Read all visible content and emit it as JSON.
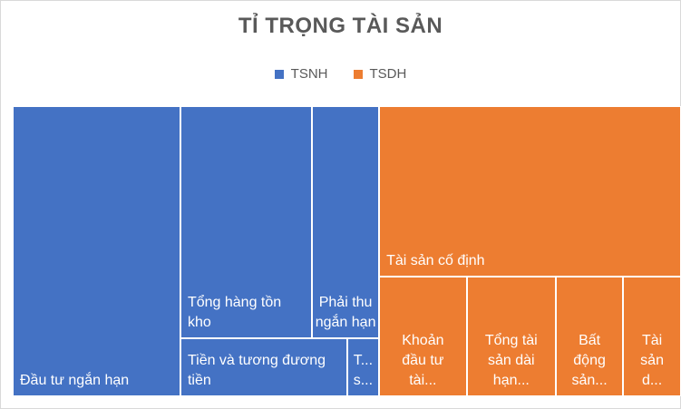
{
  "chart_data": {
    "type": "treemap",
    "title": "TỈ TRỌNG TÀI SẢN",
    "legend_position": "top",
    "legend": [
      {
        "name": "TSNH",
        "color": "#4472c4"
      },
      {
        "name": "TSDH",
        "color": "#ed7d31"
      }
    ],
    "groups": [
      {
        "name": "TSNH",
        "color": "#4472c4",
        "items": [
          {
            "label": "Đầu tư ngắn hạn",
            "value": 26
          },
          {
            "label": "Tổng hàng tồn kho",
            "value": 16.3
          },
          {
            "label": "Tiền và tương đương tiền",
            "value": 5.2
          },
          {
            "label": "T...\ns...",
            "value": 1
          },
          {
            "label": "Phải thu\nngắn hạn",
            "value": 8.3
          }
        ]
      },
      {
        "name": "TSDH",
        "color": "#ed7d31",
        "items": [
          {
            "label": "Tài sản cố định",
            "value": 27.5
          },
          {
            "label": "Khoản\nđầu tư\ntài...",
            "value": 5.6
          },
          {
            "label": "Tổng tài\nsản dài\nhạn...",
            "value": 5.7
          },
          {
            "label": "Bất\nđộng\nsản...",
            "value": 4.3
          },
          {
            "label": "Tài\nsản\nd...",
            "value": 3.7
          }
        ]
      }
    ]
  }
}
